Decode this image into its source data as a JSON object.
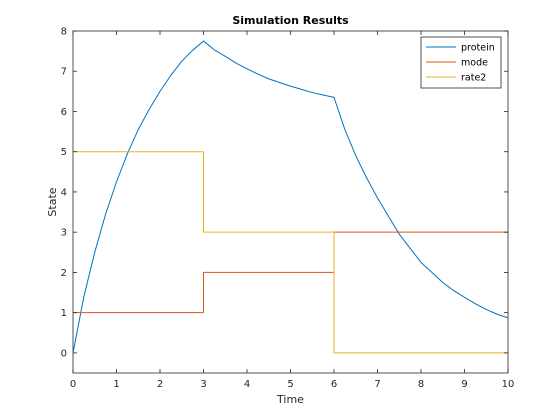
{
  "chart_data": {
    "type": "line",
    "title": "Simulation Results",
    "xlabel": "Time",
    "ylabel": "State",
    "xlim": [
      0,
      10
    ],
    "ylim": [
      -0.5,
      8
    ],
    "xticks": [
      0,
      1,
      2,
      3,
      4,
      5,
      6,
      7,
      8,
      9,
      10
    ],
    "yticks": [
      0,
      1,
      2,
      3,
      4,
      5,
      6,
      7,
      8
    ],
    "grid": false,
    "legend_position": "top-right",
    "series": [
      {
        "name": "protein",
        "color": "#0072BD",
        "style": "line",
        "x": [
          0,
          0.25,
          0.5,
          0.75,
          1,
          1.25,
          1.5,
          1.75,
          2,
          2.25,
          2.5,
          2.75,
          3,
          3.25,
          3.5,
          3.75,
          4,
          4.25,
          4.5,
          4.75,
          5,
          5.25,
          5.5,
          5.75,
          6,
          6.25,
          6.5,
          6.75,
          7,
          7.25,
          7.5,
          7.75,
          8,
          8.25,
          8.5,
          8.75,
          9,
          9.25,
          9.5,
          9.75,
          10
        ],
        "y": [
          0,
          1.4,
          2.5,
          3.45,
          4.25,
          4.95,
          5.55,
          6.05,
          6.5,
          6.9,
          7.25,
          7.52,
          7.75,
          7.53,
          7.37,
          7.2,
          7.06,
          6.93,
          6.81,
          6.72,
          6.63,
          6.55,
          6.47,
          6.41,
          6.35,
          5.55,
          4.9,
          4.35,
          3.85,
          3.4,
          2.95,
          2.6,
          2.25,
          2.0,
          1.75,
          1.55,
          1.38,
          1.22,
          1.08,
          0.96,
          0.87
        ]
      },
      {
        "name": "mode",
        "color": "#D95319",
        "style": "step",
        "x": [
          0,
          3,
          3,
          6,
          6,
          10
        ],
        "y": [
          1,
          1,
          2,
          2,
          3,
          3
        ]
      },
      {
        "name": "rate2",
        "color": "#EDB120",
        "style": "step",
        "x": [
          0,
          3,
          3,
          6,
          6,
          10
        ],
        "y": [
          5,
          5,
          3,
          3,
          0,
          0
        ]
      }
    ]
  }
}
